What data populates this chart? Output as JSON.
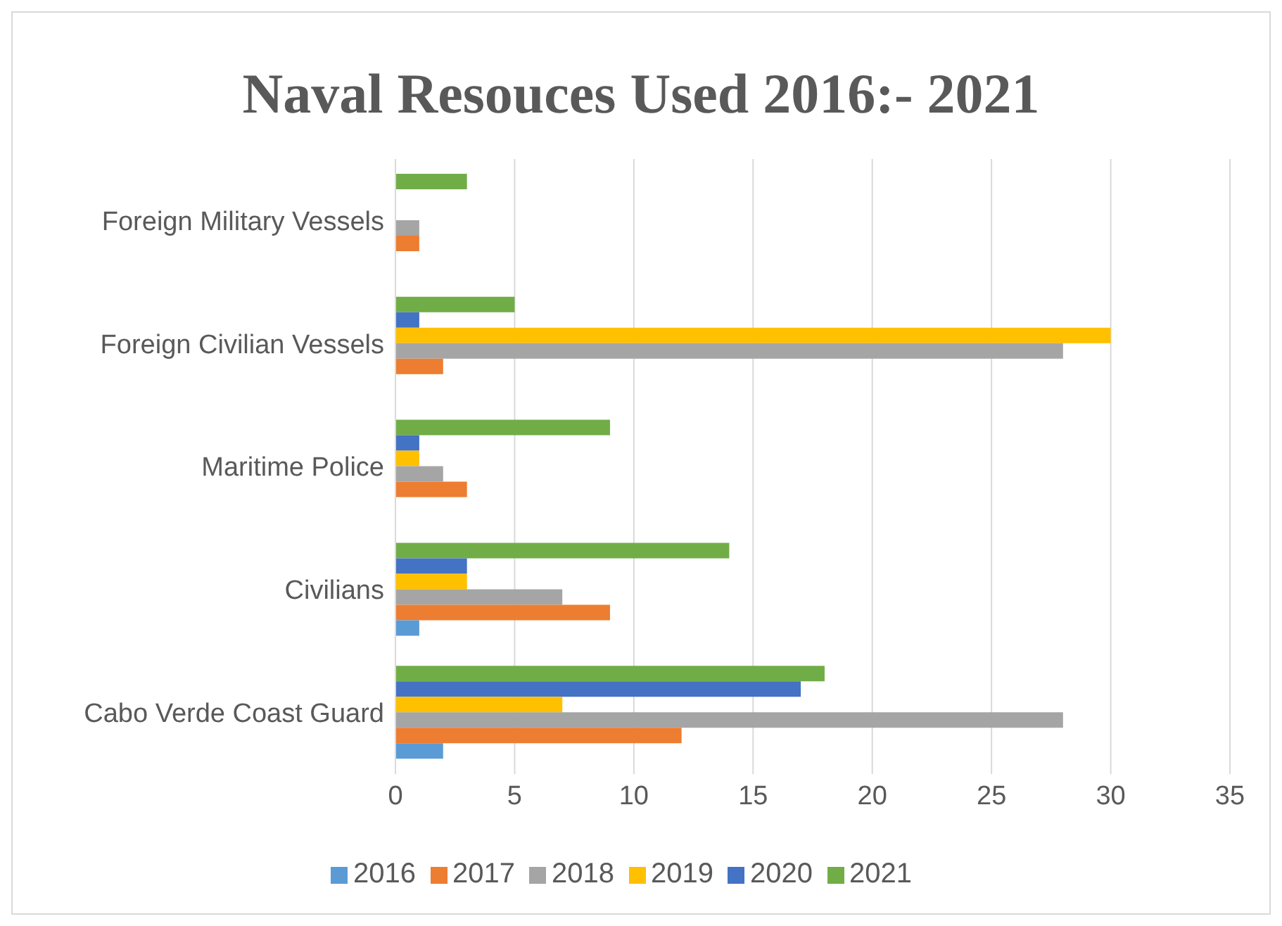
{
  "chart_data": {
    "type": "bar",
    "orientation": "horizontal",
    "title": "Naval Resouces Used 2016:- 2021",
    "categories": [
      "Foreign Military Vessels",
      "Foreign Civilian Vessels",
      "Maritime Police",
      "Civilians",
      "Cabo Verde Coast Guard"
    ],
    "series": [
      {
        "name": "2021",
        "color": "#70ad47",
        "values": [
          3,
          5,
          9,
          14,
          18
        ]
      },
      {
        "name": "2020",
        "color": "#4472c4",
        "values": [
          0,
          1,
          1,
          3,
          17
        ]
      },
      {
        "name": "2019",
        "color": "#ffc000",
        "values": [
          0,
          30,
          1,
          3,
          7
        ]
      },
      {
        "name": "2018",
        "color": "#a5a5a5",
        "values": [
          1,
          28,
          2,
          7,
          28
        ]
      },
      {
        "name": "2017",
        "color": "#ed7d31",
        "values": [
          1,
          2,
          3,
          9,
          12
        ]
      },
      {
        "name": "2016",
        "color": "#5b9bd5",
        "values": [
          0,
          0,
          0,
          1,
          2
        ]
      }
    ],
    "xlim": [
      0,
      35
    ],
    "xticks": [
      0,
      5,
      10,
      15,
      20,
      25,
      30,
      35
    ],
    "grid": "x",
    "legend": "bottom"
  }
}
